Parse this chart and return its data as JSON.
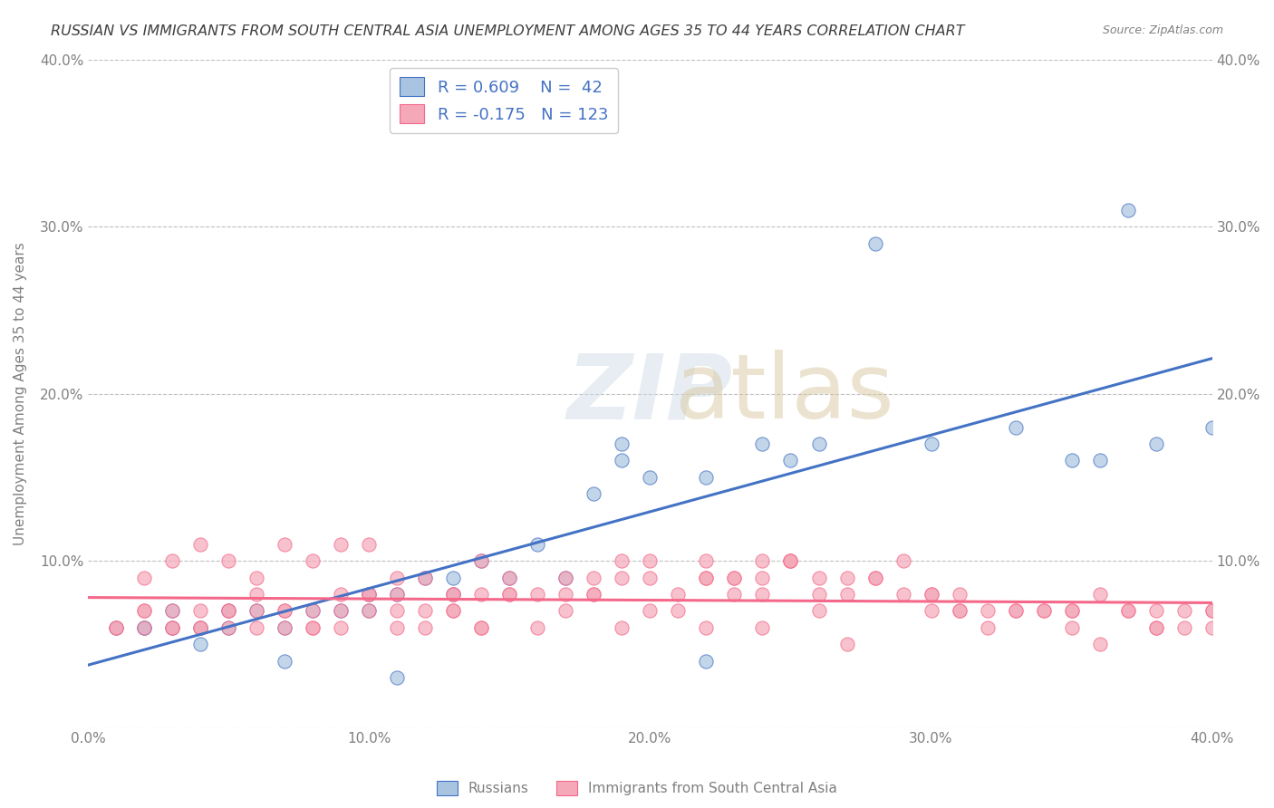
{
  "title": "RUSSIAN VS IMMIGRANTS FROM SOUTH CENTRAL ASIA UNEMPLOYMENT AMONG AGES 35 TO 44 YEARS CORRELATION CHART",
  "source": "Source: ZipAtlas.com",
  "xlabel_bottom": "",
  "ylabel": "Unemployment Among Ages 35 to 44 years",
  "xlim": [
    0.0,
    0.4
  ],
  "ylim": [
    0.0,
    0.4
  ],
  "x_ticks": [
    0.0,
    0.1,
    0.2,
    0.3,
    0.4
  ],
  "y_ticks": [
    0.0,
    0.1,
    0.2,
    0.3,
    0.4
  ],
  "x_tick_labels": [
    "0.0%",
    "10.0%",
    "20.0%",
    "30.0%",
    "40.0%"
  ],
  "y_tick_labels": [
    "",
    "10.0%",
    "20.0%",
    "30.0%",
    "40.0%"
  ],
  "legend_r1": "R = 0.609",
  "legend_n1": "N =  42",
  "legend_r2": "R = -0.175",
  "legend_n2": "N = 123",
  "blue_color": "#a8c4e0",
  "pink_color": "#f4a8b8",
  "blue_line_color": "#4472c4",
  "pink_line_color": "#f4688a",
  "title_color": "#404040",
  "axis_color": "#808080",
  "grid_color": "#c0c0c0",
  "watermark_text": "ZIPatlas",
  "blue_scatter_x": [
    0.02,
    0.03,
    0.04,
    0.05,
    0.06,
    0.07,
    0.08,
    0.1,
    0.1,
    0.11,
    0.12,
    0.13,
    0.13,
    0.14,
    0.15,
    0.16,
    0.17,
    0.18,
    0.19,
    0.2,
    0.22,
    0.24,
    0.25,
    0.26,
    0.28,
    0.3,
    0.33,
    0.35,
    0.36,
    0.37,
    0.38,
    0.4,
    0.01,
    0.02,
    0.03,
    0.04,
    0.05,
    0.07,
    0.09,
    0.11,
    0.19,
    0.22
  ],
  "blue_scatter_y": [
    0.06,
    0.07,
    0.06,
    0.07,
    0.07,
    0.06,
    0.07,
    0.07,
    0.08,
    0.08,
    0.09,
    0.08,
    0.09,
    0.1,
    0.09,
    0.11,
    0.09,
    0.14,
    0.16,
    0.15,
    0.15,
    0.17,
    0.16,
    0.17,
    0.29,
    0.17,
    0.18,
    0.16,
    0.16,
    0.31,
    0.17,
    0.18,
    0.06,
    0.06,
    0.06,
    0.05,
    0.06,
    0.04,
    0.07,
    0.03,
    0.17,
    0.04
  ],
  "pink_scatter_x": [
    0.01,
    0.02,
    0.02,
    0.03,
    0.03,
    0.04,
    0.04,
    0.05,
    0.05,
    0.06,
    0.06,
    0.07,
    0.07,
    0.08,
    0.08,
    0.09,
    0.09,
    0.1,
    0.1,
    0.11,
    0.11,
    0.12,
    0.12,
    0.13,
    0.13,
    0.14,
    0.14,
    0.15,
    0.15,
    0.16,
    0.17,
    0.17,
    0.18,
    0.18,
    0.19,
    0.19,
    0.2,
    0.2,
    0.21,
    0.22,
    0.22,
    0.23,
    0.23,
    0.24,
    0.24,
    0.25,
    0.25,
    0.26,
    0.27,
    0.27,
    0.28,
    0.29,
    0.3,
    0.3,
    0.31,
    0.31,
    0.32,
    0.33,
    0.34,
    0.35,
    0.35,
    0.36,
    0.37,
    0.38,
    0.38,
    0.39,
    0.4,
    0.4,
    0.01,
    0.02,
    0.03,
    0.04,
    0.05,
    0.06,
    0.07,
    0.08,
    0.09,
    0.1,
    0.11,
    0.12,
    0.13,
    0.14,
    0.15,
    0.16,
    0.17,
    0.18,
    0.19,
    0.2,
    0.21,
    0.22,
    0.23,
    0.24,
    0.25,
    0.26,
    0.27,
    0.28,
    0.29,
    0.3,
    0.31,
    0.32,
    0.33,
    0.34,
    0.35,
    0.36,
    0.37,
    0.38,
    0.39,
    0.4,
    0.02,
    0.03,
    0.04,
    0.05,
    0.06,
    0.07,
    0.08,
    0.09,
    0.1,
    0.11,
    0.13,
    0.14,
    0.22,
    0.24,
    0.26
  ],
  "pink_scatter_y": [
    0.06,
    0.06,
    0.07,
    0.07,
    0.06,
    0.06,
    0.06,
    0.06,
    0.07,
    0.07,
    0.06,
    0.07,
    0.06,
    0.07,
    0.06,
    0.06,
    0.07,
    0.07,
    0.08,
    0.07,
    0.06,
    0.06,
    0.07,
    0.08,
    0.07,
    0.06,
    0.08,
    0.09,
    0.08,
    0.08,
    0.07,
    0.09,
    0.09,
    0.08,
    0.1,
    0.09,
    0.09,
    0.1,
    0.08,
    0.09,
    0.1,
    0.08,
    0.09,
    0.08,
    0.09,
    0.1,
    0.1,
    0.09,
    0.08,
    0.09,
    0.09,
    0.1,
    0.08,
    0.07,
    0.08,
    0.07,
    0.07,
    0.07,
    0.07,
    0.07,
    0.07,
    0.08,
    0.07,
    0.06,
    0.07,
    0.06,
    0.06,
    0.07,
    0.06,
    0.07,
    0.06,
    0.07,
    0.07,
    0.08,
    0.07,
    0.06,
    0.08,
    0.08,
    0.08,
    0.09,
    0.07,
    0.06,
    0.08,
    0.06,
    0.08,
    0.08,
    0.06,
    0.07,
    0.07,
    0.06,
    0.09,
    0.1,
    0.1,
    0.08,
    0.05,
    0.09,
    0.08,
    0.08,
    0.07,
    0.06,
    0.07,
    0.07,
    0.06,
    0.05,
    0.07,
    0.06,
    0.07,
    0.07,
    0.09,
    0.1,
    0.11,
    0.1,
    0.09,
    0.11,
    0.1,
    0.11,
    0.11,
    0.09,
    0.08,
    0.1,
    0.09,
    0.06,
    0.07
  ]
}
